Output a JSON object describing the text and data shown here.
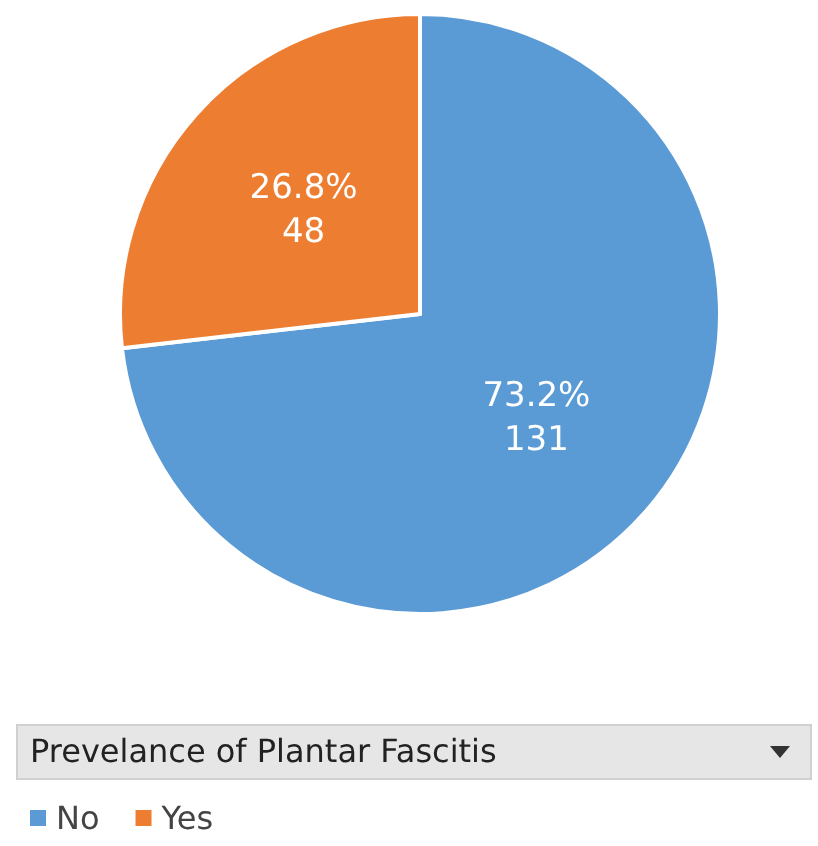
{
  "chart_data": {
    "type": "pie",
    "legend_title": "Prevelance of Plantar Fascitis",
    "categories": [
      "No",
      "Yes"
    ],
    "values": [
      131,
      48
    ],
    "colors": [
      "#5b9bd5",
      "#ed7d31"
    ],
    "value_labels": [
      "73.2%\n131",
      "26.8%\n48"
    ],
    "legend": "bottom"
  }
}
